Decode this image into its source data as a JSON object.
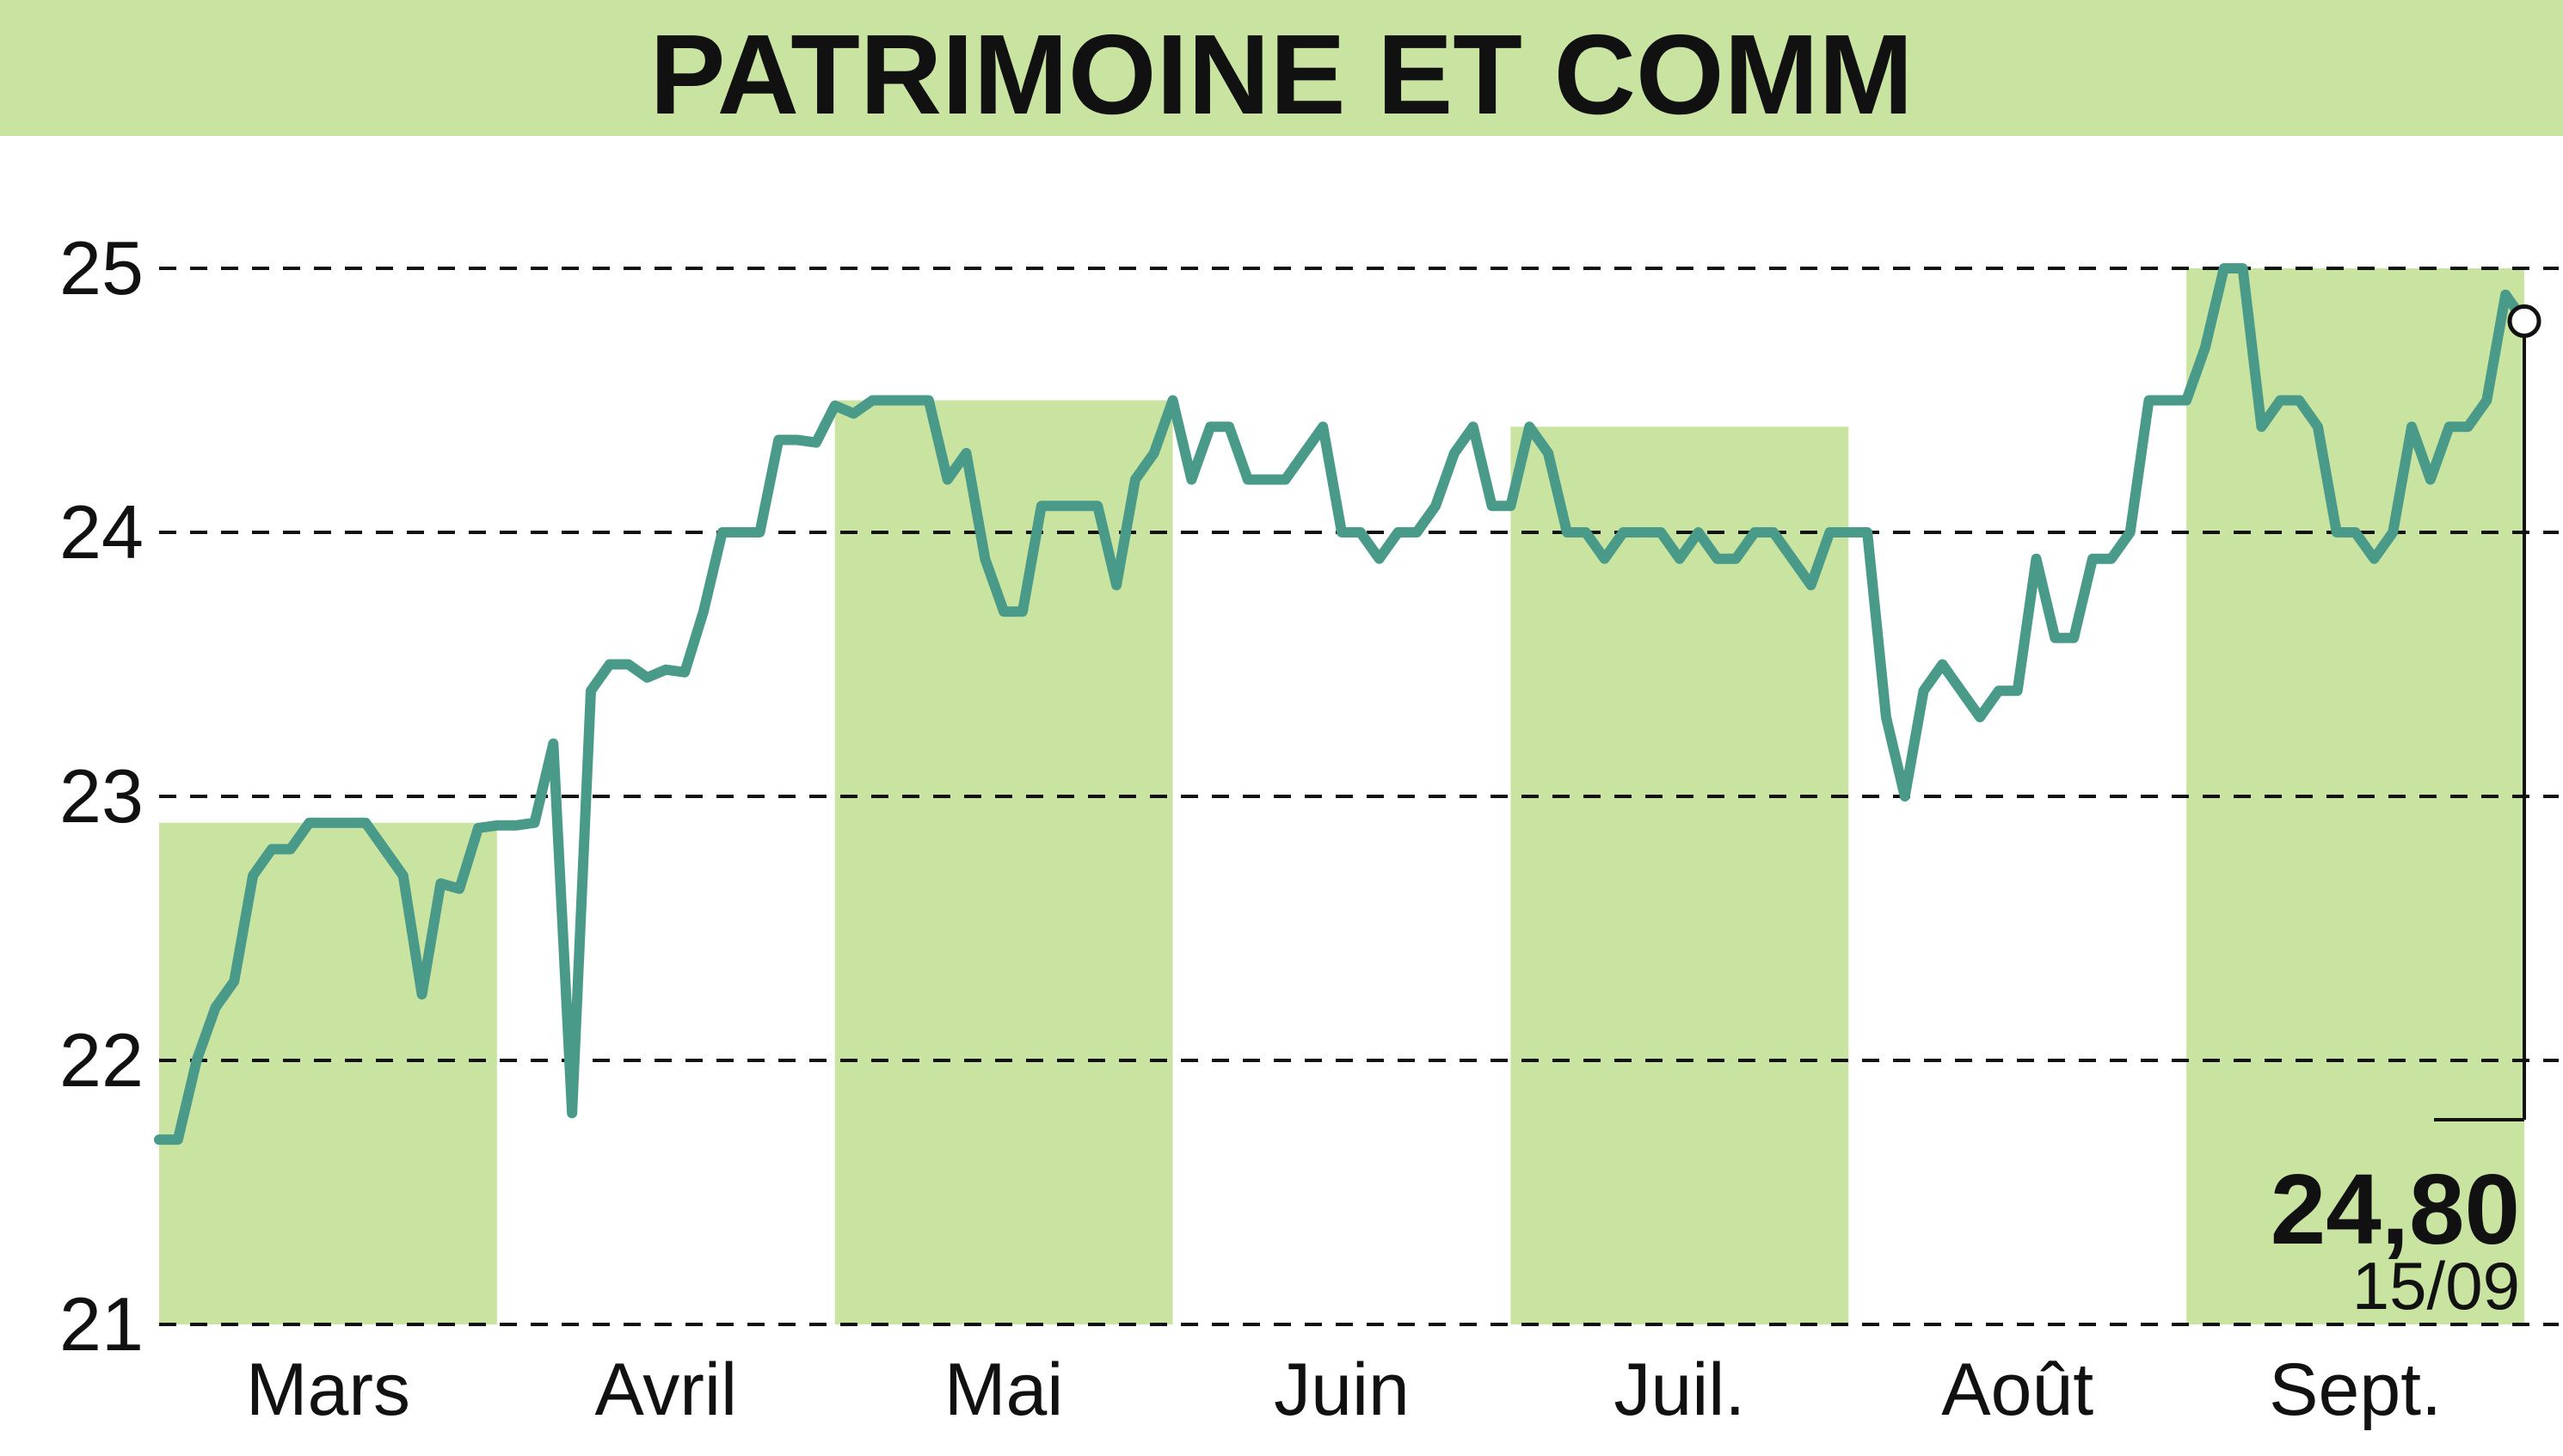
{
  "colors": {
    "title_band": "#c9e3a0",
    "shade": "#c9e3a0",
    "line": "#4a9a8a",
    "grid": "#111111"
  },
  "chart_data": {
    "type": "line",
    "title": "PATRIMOINE ET COMM",
    "ylim": [
      21,
      25
    ],
    "y_ticks": [
      "21",
      "22",
      "23",
      "24",
      "25"
    ],
    "grid": "horizontal-dashed",
    "months": [
      {
        "label": "Mars",
        "shaded": true
      },
      {
        "label": "Avril",
        "shaded": false
      },
      {
        "label": "Mai",
        "shaded": true
      },
      {
        "label": "Juin",
        "shaded": false
      },
      {
        "label": "Juil.",
        "shaded": true
      },
      {
        "label": "Août",
        "shaded": false
      },
      {
        "label": "Sept.",
        "shaded": true
      }
    ],
    "values": [
      21.7,
      21.7,
      22.0,
      22.2,
      22.3,
      22.7,
      22.8,
      22.8,
      22.9,
      22.9,
      22.9,
      22.9,
      22.8,
      22.7,
      22.25,
      22.67,
      22.65,
      22.88,
      22.89,
      22.89,
      22.9,
      23.2,
      21.8,
      23.4,
      23.5,
      23.5,
      23.45,
      23.48,
      23.47,
      23.7,
      24.0,
      24.0,
      24.0,
      24.35,
      24.35,
      24.34,
      24.48,
      24.45,
      24.5,
      24.5,
      24.5,
      24.5,
      24.2,
      24.3,
      23.9,
      23.7,
      23.7,
      24.1,
      24.1,
      24.1,
      24.1,
      23.8,
      24.2,
      24.3,
      24.5,
      24.2,
      24.4,
      24.4,
      24.2,
      24.2,
      24.2,
      24.3,
      24.4,
      24.0,
      24.0,
      23.9,
      24.0,
      24.0,
      24.1,
      24.3,
      24.4,
      24.1,
      24.1,
      24.4,
      24.3,
      24.0,
      24.0,
      23.9,
      24.0,
      24.0,
      24.0,
      23.9,
      24.0,
      23.9,
      23.9,
      24.0,
      24.0,
      23.9,
      23.8,
      24.0,
      24.0,
      24.0,
      23.3,
      23.0,
      23.4,
      23.5,
      23.4,
      23.3,
      23.4,
      23.4,
      23.9,
      23.6,
      23.6,
      23.9,
      23.9,
      24.0,
      24.5,
      24.5,
      24.5,
      24.7,
      25.0,
      25.0,
      24.4,
      24.5,
      24.5,
      24.4,
      24.0,
      24.0,
      23.9,
      24.0,
      24.4,
      24.2,
      24.4,
      24.4,
      24.5,
      24.9,
      24.8
    ],
    "last_value": "24,80",
    "last_date": "15/09"
  }
}
